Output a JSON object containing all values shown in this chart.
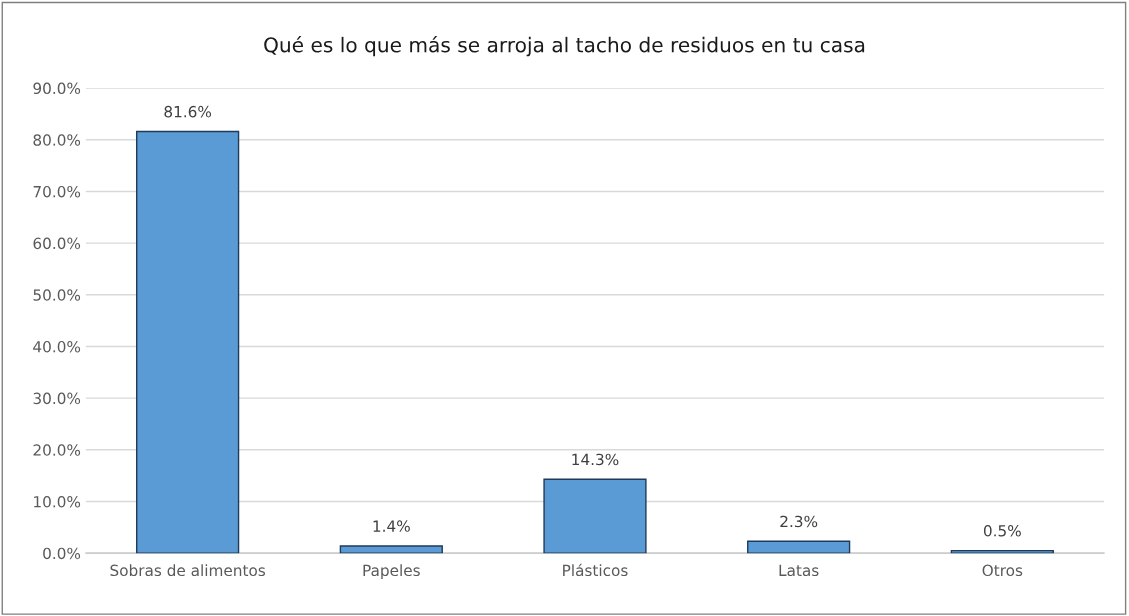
{
  "chart_data": {
    "type": "bar",
    "title": "Qué es lo que más se arroja al tacho de residuos en tu casa",
    "categories": [
      "Sobras de alimentos",
      "Papeles",
      "Plásticos",
      "Latas",
      "Otros"
    ],
    "values": [
      81.6,
      1.4,
      14.3,
      2.3,
      0.5
    ],
    "value_labels": [
      "81.6%",
      "1.4%",
      "14.3%",
      "2.3%",
      "0.5%"
    ],
    "color": "#5b9bd5",
    "ylim": [
      0,
      90
    ],
    "yticks": [
      {
        "value": 0,
        "label": "0.0%"
      },
      {
        "value": 10,
        "label": "10.0%"
      },
      {
        "value": 20,
        "label": "20.0%"
      },
      {
        "value": 30,
        "label": "30.0%"
      },
      {
        "value": 40,
        "label": "40.0%"
      },
      {
        "value": 50,
        "label": "50.0%"
      },
      {
        "value": 60,
        "label": "60.0%"
      },
      {
        "value": 70,
        "label": "70.0%"
      },
      {
        "value": 80,
        "label": "80.0%"
      },
      {
        "value": 90,
        "label": "90.0%"
      }
    ],
    "grid": "y",
    "legend": false
  }
}
